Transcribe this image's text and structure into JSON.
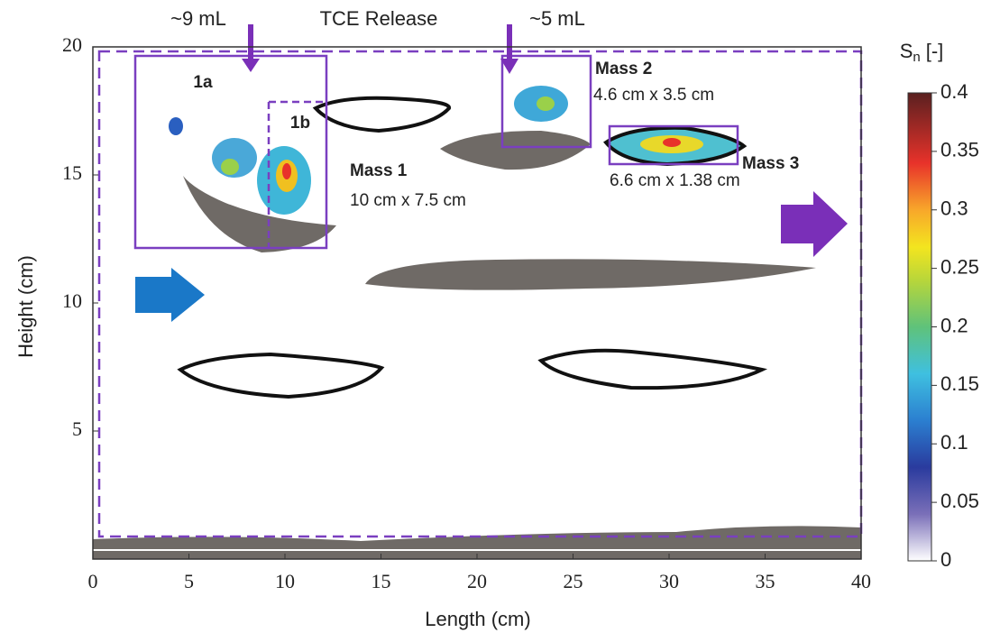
{
  "chart_data": {
    "type": "section",
    "xlabel": "Length (cm)",
    "ylabel": "Height (cm)",
    "xlim": [
      0,
      40
    ],
    "xticks": [
      0,
      5,
      10,
      15,
      20,
      25,
      30,
      35,
      40
    ],
    "ylim": [
      0,
      20
    ],
    "yticks": [
      5,
      10,
      15,
      20
    ],
    "colorbar": {
      "symbol": "S",
      "subscript": "n",
      "unit": "[-]",
      "lim": [
        0,
        0.4
      ],
      "ticks": [
        0,
        0.05,
        0.1,
        0.15,
        0.2,
        0.25,
        0.3,
        0.35,
        0.4
      ]
    },
    "annotations": {
      "release_1": "~9 mL",
      "release_title": "TCE Release",
      "release_2": "~5 mL",
      "zone_1a": "1a",
      "zone_1b": "1b",
      "mass_1": "Mass 1",
      "mass_1_size": "10 cm x 7.5 cm",
      "mass_2": "Mass 2",
      "mass_2_size": "4.6 cm x 3.5 cm",
      "mass_3": "Mass 3",
      "mass_3_size": "6.6 cm x 1.38 cm"
    }
  }
}
